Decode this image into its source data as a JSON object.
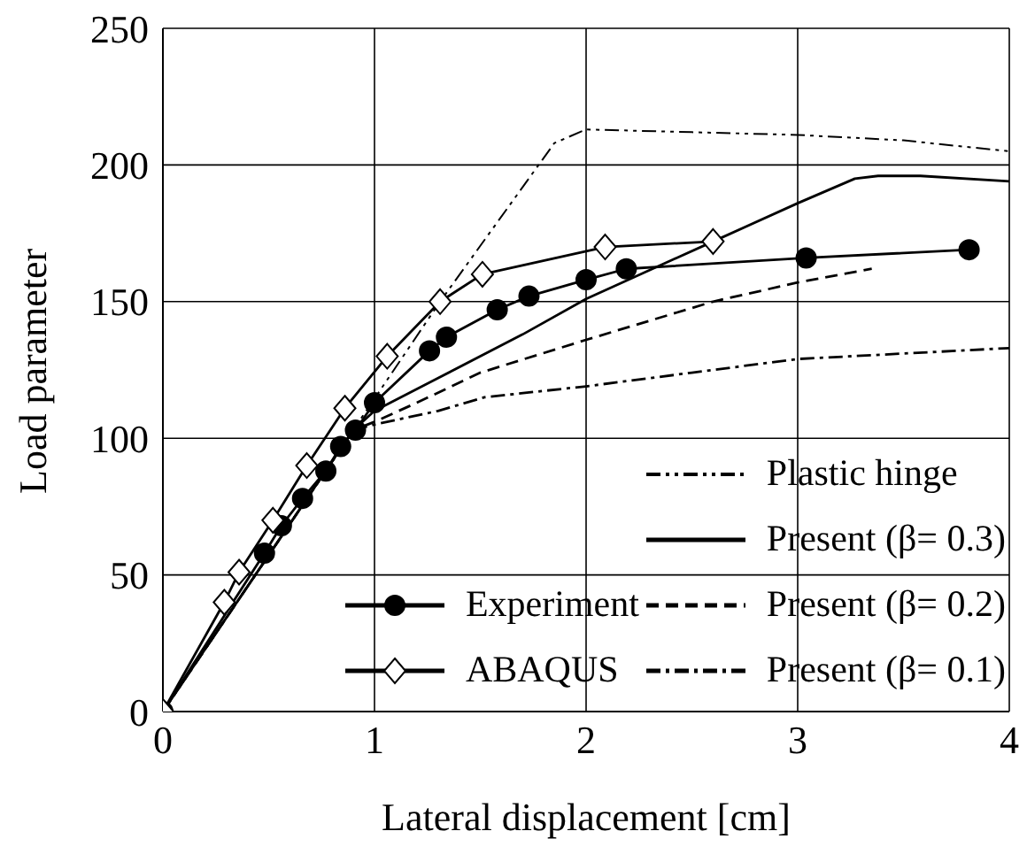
{
  "chart_data": {
    "type": "line",
    "xlabel": "Lateral displacement [cm]",
    "ylabel": "Load parameter",
    "xlim": [
      0,
      4
    ],
    "xticks": [
      0,
      1,
      2,
      3,
      4
    ],
    "ylim": [
      0,
      250
    ],
    "yticks": [
      0,
      50,
      100,
      150,
      200,
      250
    ],
    "grid": true,
    "legend": "bottom right",
    "series": [
      {
        "name": "Experiment",
        "color": "#000000",
        "marker": "circle",
        "line_style": "solid",
        "x": [
          0,
          0.48,
          0.56,
          0.66,
          0.77,
          0.84,
          0.91,
          1.0,
          1.26,
          1.34,
          1.58,
          1.73,
          2.0,
          2.19,
          3.04,
          3.81
        ],
        "values": [
          0,
          58,
          68,
          78,
          88,
          97,
          103,
          113,
          132,
          137,
          147,
          152,
          158,
          162,
          166,
          169
        ]
      },
      {
        "name": "ABAQUS",
        "color": "#000000",
        "marker": "diamond",
        "line_style": "solid",
        "x": [
          0,
          0.29,
          0.36,
          0.52,
          0.68,
          0.86,
          1.06,
          1.31,
          1.51,
          2.09,
          2.6
        ],
        "values": [
          0,
          40,
          51,
          70,
          90,
          111,
          130,
          150,
          160,
          170,
          172
        ]
      },
      {
        "name": "Plastic hinge",
        "color": "#000000",
        "marker": "none",
        "line_style": "dashdotdot",
        "x": [
          0,
          1.31,
          1.85,
          2.0,
          2.5,
          3.0,
          3.5,
          4.0
        ],
        "values": [
          0,
          150,
          208,
          213,
          212,
          211,
          209,
          205
        ]
      },
      {
        "name": "Present (β= 0.3)",
        "color": "#000000",
        "marker": "none",
        "line_style": "solid",
        "x": [
          0,
          0.9,
          1.0,
          1.3,
          1.7,
          2.0,
          2.6,
          3.0,
          3.27,
          3.38,
          3.58,
          4.0
        ],
        "values": [
          0,
          103,
          110,
          122,
          138,
          151,
          172,
          186,
          195,
          196,
          196,
          194
        ]
      },
      {
        "name": "Present (β= 0.2)",
        "color": "#000000",
        "marker": "none",
        "line_style": "dashed",
        "x": [
          0,
          0.9,
          1.0,
          1.2,
          1.5,
          2.0,
          2.6,
          3.0,
          3.35
        ],
        "values": [
          0,
          103,
          106,
          113,
          124,
          136,
          150,
          157,
          162
        ]
      },
      {
        "name": "Present (β= 0.1)",
        "color": "#000000",
        "marker": "none",
        "line_style": "dashdot",
        "x": [
          0,
          0.9,
          1.0,
          1.3,
          1.52,
          2.0,
          2.5,
          3.0,
          3.5,
          4.0
        ],
        "values": [
          0,
          103,
          105,
          110,
          115,
          119,
          124,
          129,
          131,
          133
        ]
      }
    ]
  }
}
